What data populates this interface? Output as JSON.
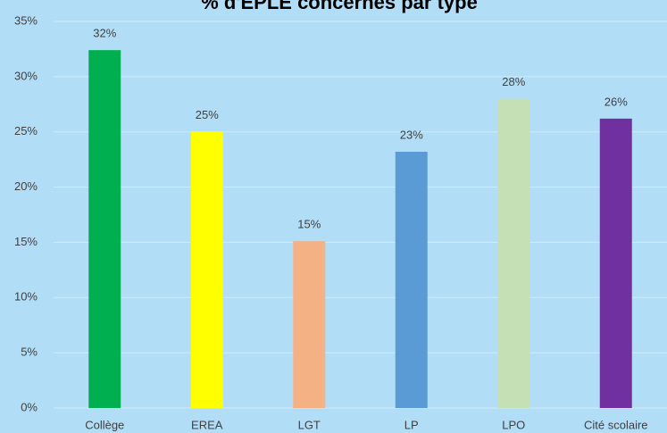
{
  "chart_data": {
    "type": "bar",
    "title": "% d'EPLE concernés par type",
    "categories": [
      "Collège",
      "EREA",
      "LGT",
      "LP",
      "LPO",
      "Cité scolaire"
    ],
    "values": [
      32.4,
      25,
      15.1,
      23.2,
      28,
      26.2
    ],
    "value_labels": [
      "32%",
      "25%",
      "15%",
      "23%",
      "28%",
      "26%"
    ],
    "colors": [
      "#00b050",
      "#ffff00",
      "#f4b183",
      "#5b9bd5",
      "#c5e0b4",
      "#7030a0"
    ],
    "ylim": [
      0,
      35
    ],
    "yticks": [
      {
        "value": 0,
        "label": "0%"
      },
      {
        "value": 5,
        "label": "5%"
      },
      {
        "value": 10,
        "label": "10%"
      },
      {
        "value": 15,
        "label": "15%"
      },
      {
        "value": 20,
        "label": "20%"
      },
      {
        "value": 25,
        "label": "25%"
      },
      {
        "value": 30,
        "label": "30%"
      },
      {
        "value": 35,
        "label": "35%"
      }
    ],
    "grid": true
  }
}
